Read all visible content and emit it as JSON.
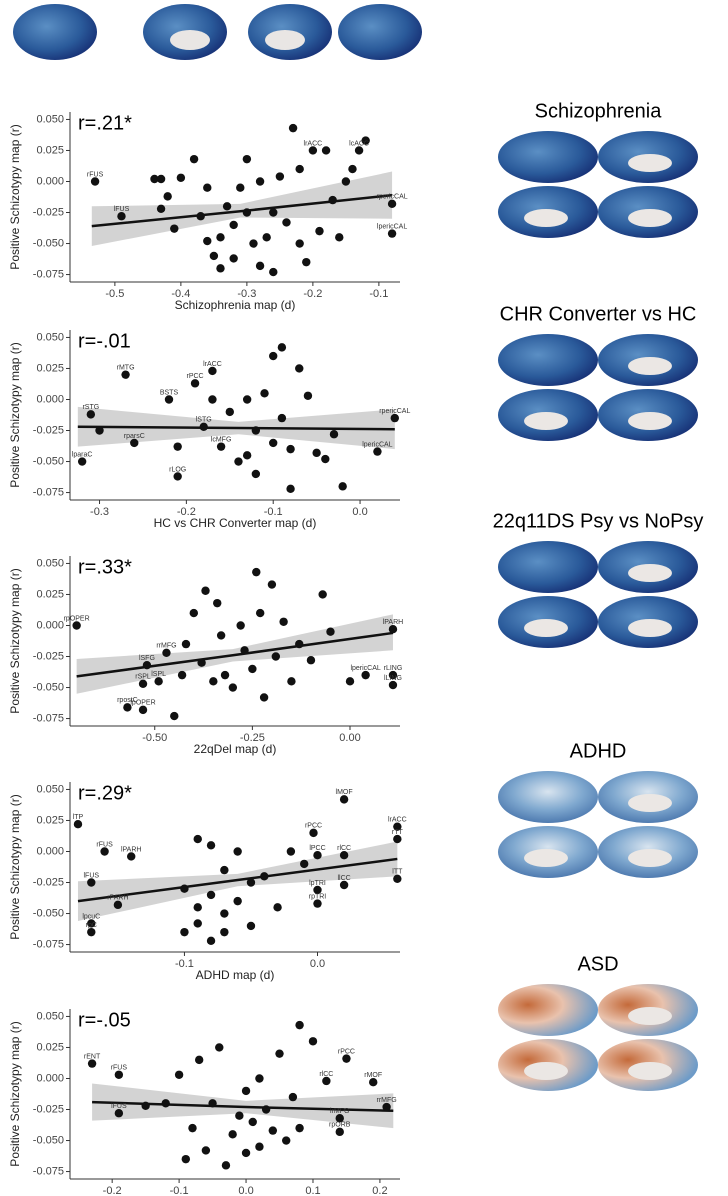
{
  "chart_data": [
    {
      "type": "scatter",
      "stat_label": "r=.21*",
      "brain_map_title": "Schizophrenia",
      "x_label": "Schizophrenia map (d)",
      "y_label": "Positive Schizotypy map (r)",
      "color": "#111111",
      "xlim": [
        -0.568,
        -0.068
      ],
      "ylim": [
        -0.081,
        0.056
      ],
      "xticks": [
        -0.5,
        -0.4,
        -0.3,
        -0.2,
        -0.1
      ],
      "yticks": [
        {
          "value": 0.05,
          "label": "0.050"
        },
        0.025,
        {
          "value": 0,
          "label": "0.000"
        },
        -0.025,
        {
          "value": -0.05,
          "label": "-0.050"
        },
        -0.075
      ],
      "x": [
        -0.53,
        -0.49,
        -0.44,
        -0.43,
        -0.42,
        -0.43,
        -0.41,
        -0.4,
        -0.38,
        -0.37,
        -0.36,
        -0.36,
        -0.35,
        -0.34,
        -0.34,
        -0.33,
        -0.32,
        -0.32,
        -0.31,
        -0.3,
        -0.3,
        -0.29,
        -0.28,
        -0.28,
        -0.27,
        -0.26,
        -0.26,
        -0.25,
        -0.24,
        -0.23,
        -0.22,
        -0.22,
        -0.21,
        -0.2,
        -0.19,
        -0.18,
        -0.17,
        -0.16,
        -0.15,
        -0.14,
        -0.13,
        -0.12,
        -0.08,
        -0.08
      ],
      "values": [
        0.0,
        -0.028,
        0.002,
        0.002,
        -0.012,
        -0.022,
        -0.038,
        0.003,
        0.018,
        -0.028,
        -0.005,
        -0.048,
        -0.06,
        -0.045,
        -0.07,
        -0.02,
        -0.035,
        -0.062,
        -0.005,
        0.018,
        -0.025,
        -0.05,
        -0.068,
        0.0,
        -0.045,
        -0.073,
        -0.025,
        0.004,
        -0.033,
        0.043,
        0.01,
        -0.05,
        -0.065,
        0.025,
        -0.04,
        0.025,
        -0.015,
        -0.045,
        0.0,
        0.01,
        0.025,
        0.033,
        -0.018,
        -0.042
      ],
      "annotations": [
        {
          "text": "rFUS",
          "x": -0.53,
          "y": 0.0
        },
        {
          "text": "lFUS",
          "x": -0.49,
          "y": -0.028
        },
        {
          "text": "lrACC",
          "x": -0.2,
          "y": 0.025
        },
        {
          "text": "lcACC",
          "x": -0.13,
          "y": 0.025
        },
        {
          "text": "rpericCAL",
          "x": -0.08,
          "y": -0.018
        },
        {
          "text": "lpericCAL",
          "x": -0.08,
          "y": -0.042
        }
      ],
      "fit": {
        "x": [
          -0.535,
          -0.31,
          -0.08
        ],
        "y": [
          -0.036,
          -0.024,
          -0.011
        ],
        "lower": [
          -0.052,
          -0.029,
          -0.03
        ],
        "upper": [
          -0.02,
          -0.018,
          0.008
        ]
      }
    },
    {
      "type": "scatter",
      "stat_label": "r=-.01",
      "brain_map_title": "CHR Converter vs HC",
      "x_label": "HC vs CHR Converter map (d)",
      "y_label": "Positive Schizotypy map (r)",
      "color": "#111111",
      "xlim": [
        -0.334,
        0.046
      ],
      "ylim": [
        -0.081,
        0.056
      ],
      "xticks": [
        -0.3,
        -0.2,
        -0.1,
        {
          "value": 0,
          "label": "0.0"
        }
      ],
      "yticks": [
        {
          "value": 0.05,
          "label": "0.050"
        },
        0.025,
        {
          "value": 0,
          "label": "0.000"
        },
        -0.025,
        {
          "value": -0.05,
          "label": "-0.050"
        },
        -0.075
      ],
      "x": [
        -0.32,
        -0.31,
        -0.3,
        -0.27,
        -0.26,
        -0.22,
        -0.21,
        -0.21,
        -0.19,
        -0.18,
        -0.17,
        -0.17,
        -0.16,
        -0.15,
        -0.14,
        -0.13,
        -0.13,
        -0.12,
        -0.12,
        -0.11,
        -0.1,
        -0.1,
        -0.09,
        -0.09,
        -0.08,
        -0.08,
        -0.07,
        -0.06,
        -0.05,
        -0.04,
        -0.03,
        -0.02,
        0.02,
        0.04
      ],
      "values": [
        -0.05,
        -0.012,
        -0.025,
        0.02,
        -0.035,
        0.0,
        -0.038,
        -0.062,
        0.013,
        -0.022,
        0.023,
        0.0,
        -0.038,
        -0.01,
        -0.05,
        0.0,
        -0.045,
        -0.025,
        -0.06,
        0.005,
        0.035,
        -0.035,
        0.042,
        -0.015,
        -0.072,
        -0.04,
        0.025,
        0.003,
        -0.043,
        -0.048,
        -0.028,
        -0.07,
        -0.042,
        -0.015
      ],
      "annotations": [
        {
          "text": "lparaC",
          "x": -0.32,
          "y": -0.05
        },
        {
          "text": "rSTG",
          "x": -0.31,
          "y": -0.012
        },
        {
          "text": "rMTG",
          "x": -0.27,
          "y": 0.02
        },
        {
          "text": "rparsC",
          "x": -0.26,
          "y": -0.035
        },
        {
          "text": "BSTS",
          "x": -0.22,
          "y": 0.0
        },
        {
          "text": "rLOG",
          "x": -0.21,
          "y": -0.062
        },
        {
          "text": "rPCC",
          "x": -0.19,
          "y": 0.013
        },
        {
          "text": "lSTG",
          "x": -0.18,
          "y": -0.022
        },
        {
          "text": "lrACC",
          "x": -0.17,
          "y": 0.023
        },
        {
          "text": "lcMFG",
          "x": -0.16,
          "y": -0.038
        },
        {
          "text": "lpericCAL",
          "x": 0.02,
          "y": -0.042
        },
        {
          "text": "rpericCAL",
          "x": 0.04,
          "y": -0.015
        }
      ],
      "fit": {
        "x": [
          -0.325,
          -0.14,
          0.04
        ],
        "y": [
          -0.022,
          -0.023,
          -0.024
        ],
        "lower": [
          -0.038,
          -0.028,
          -0.04
        ],
        "upper": [
          -0.006,
          -0.018,
          -0.008
        ]
      }
    },
    {
      "type": "scatter",
      "stat_label": "r=.33*",
      "brain_map_title": "22q11DS Psy vs NoPsy",
      "x_label": "22qDel map (d)",
      "y_label": "Positive Schizotypy map (r)",
      "color": "#111111",
      "xlim": [
        -0.717,
        0.128
      ],
      "ylim": [
        -0.081,
        0.056
      ],
      "xticks": [
        {
          "value": -0.5,
          "label": "-0.50"
        },
        -0.25,
        {
          "value": 0,
          "label": "0.00"
        }
      ],
      "yticks": [
        {
          "value": 0.05,
          "label": "0.050"
        },
        0.025,
        {
          "value": 0,
          "label": "0.000"
        },
        -0.025,
        {
          "value": -0.05,
          "label": "-0.050"
        },
        -0.075
      ],
      "x": [
        -0.7,
        -0.57,
        -0.53,
        -0.53,
        -0.52,
        -0.49,
        -0.47,
        -0.45,
        -0.43,
        -0.42,
        -0.4,
        -0.38,
        -0.37,
        -0.35,
        -0.34,
        -0.33,
        -0.32,
        -0.3,
        -0.28,
        -0.27,
        -0.25,
        -0.24,
        -0.23,
        -0.22,
        -0.2,
        -0.19,
        -0.17,
        -0.15,
        -0.13,
        -0.1,
        -0.07,
        -0.05,
        0.0,
        0.04,
        0.11,
        0.11,
        0.11
      ],
      "values": [
        0.0,
        -0.066,
        -0.047,
        -0.068,
        -0.032,
        -0.045,
        -0.022,
        -0.073,
        -0.04,
        -0.015,
        0.01,
        -0.03,
        0.028,
        -0.045,
        0.018,
        -0.008,
        -0.04,
        -0.05,
        0.0,
        -0.02,
        -0.035,
        0.043,
        0.01,
        -0.058,
        0.033,
        -0.025,
        0.003,
        -0.045,
        -0.015,
        -0.028,
        0.025,
        -0.005,
        -0.045,
        -0.04,
        -0.003,
        -0.04,
        -0.048
      ],
      "annotations": [
        {
          "text": "rpOPER",
          "x": -0.7,
          "y": 0.0
        },
        {
          "text": "rpostC",
          "x": -0.57,
          "y": -0.066
        },
        {
          "text": "rSPL",
          "x": -0.53,
          "y": -0.047
        },
        {
          "text": "lpOPER",
          "x": -0.53,
          "y": -0.068
        },
        {
          "text": "lSFG",
          "x": -0.52,
          "y": -0.032
        },
        {
          "text": "lSPL",
          "x": -0.49,
          "y": -0.045
        },
        {
          "text": "rrMFG",
          "x": -0.47,
          "y": -0.022
        },
        {
          "text": "lpericCAL",
          "x": 0.04,
          "y": -0.04
        },
        {
          "text": "lPARH",
          "x": 0.11,
          "y": -0.003
        },
        {
          "text": "rLING",
          "x": 0.11,
          "y": -0.04
        },
        {
          "text": "lLING",
          "x": 0.11,
          "y": -0.048
        }
      ],
      "fit": {
        "x": [
          -0.7,
          -0.3,
          0.11
        ],
        "y": [
          -0.041,
          -0.024,
          -0.006
        ],
        "lower": [
          -0.055,
          -0.029,
          -0.02
        ],
        "upper": [
          -0.027,
          -0.019,
          0.009
        ]
      }
    },
    {
      "type": "scatter",
      "stat_label": "r=.29*",
      "brain_map_title": "ADHD",
      "x_label": "ADHD map (d)",
      "y_label": "Positive Schizotypy map (r)",
      "color": "#111111",
      "xlim": [
        -0.186,
        0.062
      ],
      "ylim": [
        -0.081,
        0.056
      ],
      "xticks": [
        -0.1,
        {
          "value": 0,
          "label": "0.0"
        }
      ],
      "yticks": [
        {
          "value": 0.05,
          "label": "0.050"
        },
        0.025,
        {
          "value": 0,
          "label": "0.000"
        },
        -0.025,
        {
          "value": -0.05,
          "label": "-0.050"
        },
        -0.075
      ],
      "x": [
        -0.18,
        -0.17,
        -0.17,
        -0.17,
        -0.16,
        -0.15,
        -0.14,
        -0.1,
        -0.1,
        -0.09,
        -0.09,
        -0.09,
        -0.08,
        -0.08,
        -0.08,
        -0.07,
        -0.07,
        -0.07,
        -0.06,
        -0.06,
        -0.05,
        -0.05,
        -0.04,
        -0.03,
        -0.02,
        -0.01,
        -0.003,
        0.0,
        0.0,
        0.0,
        0.02,
        0.02,
        0.02,
        0.06,
        0.06,
        0.06
      ],
      "values": [
        0.022,
        -0.025,
        -0.058,
        -0.065,
        0.0,
        -0.043,
        -0.004,
        -0.065,
        -0.03,
        0.01,
        -0.045,
        -0.058,
        0.005,
        -0.035,
        -0.072,
        -0.015,
        -0.05,
        -0.065,
        0.0,
        -0.04,
        -0.025,
        -0.06,
        -0.02,
        -0.045,
        0.0,
        -0.01,
        0.015,
        -0.003,
        -0.031,
        -0.042,
        0.042,
        -0.003,
        -0.027,
        0.02,
        0.01,
        -0.022
      ],
      "annotations": [
        {
          "text": "lTP",
          "x": -0.18,
          "y": 0.022
        },
        {
          "text": "lFUS",
          "x": -0.17,
          "y": -0.025
        },
        {
          "text": "lpcuC",
          "x": -0.17,
          "y": -0.058
        },
        {
          "text": "rpC",
          "x": -0.17,
          "y": -0.065
        },
        {
          "text": "rFUS",
          "x": -0.16,
          "y": 0.0
        },
        {
          "text": "rPARH",
          "x": -0.15,
          "y": -0.043
        },
        {
          "text": "lPARH",
          "x": -0.14,
          "y": -0.004
        },
        {
          "text": "rPCC",
          "x": -0.003,
          "y": 0.015
        },
        {
          "text": "lPCC",
          "x": 0.0,
          "y": -0.003
        },
        {
          "text": "lpTRI",
          "x": 0.0,
          "y": -0.031
        },
        {
          "text": "rpTRI",
          "x": 0.0,
          "y": -0.042
        },
        {
          "text": "lMOF",
          "x": 0.02,
          "y": 0.042
        },
        {
          "text": "rlCC",
          "x": 0.02,
          "y": -0.003
        },
        {
          "text": "llCC",
          "x": 0.02,
          "y": -0.027
        },
        {
          "text": "lrACC",
          "x": 0.06,
          "y": 0.02
        },
        {
          "text": "rTT",
          "x": 0.06,
          "y": 0.01
        },
        {
          "text": "lTT",
          "x": 0.06,
          "y": -0.022
        }
      ],
      "fit": {
        "x": [
          -0.18,
          -0.06,
          0.06
        ],
        "y": [
          -0.04,
          -0.023,
          -0.006
        ],
        "lower": [
          -0.056,
          -0.028,
          -0.02
        ],
        "upper": [
          -0.024,
          -0.018,
          0.008
        ]
      }
    },
    {
      "type": "scatter",
      "stat_label": "r=-.05",
      "brain_map_title": "ASD",
      "x_label": "ASD map (d)",
      "y_label": "Positive Schizotypy map (r)",
      "color": "#111111",
      "xlim": [
        -0.263,
        0.23
      ],
      "ylim": [
        -0.081,
        0.056
      ],
      "xticks": [
        -0.2,
        -0.1,
        {
          "value": 0,
          "label": "0.0"
        },
        0.1,
        0.2
      ],
      "yticks": [
        {
          "value": 0.05,
          "label": "0.050"
        },
        0.025,
        {
          "value": 0,
          "label": "0.000"
        },
        -0.025,
        {
          "value": -0.05,
          "label": "-0.050"
        },
        -0.075
      ],
      "x": [
        -0.23,
        -0.19,
        -0.19,
        -0.15,
        -0.12,
        -0.1,
        -0.09,
        -0.08,
        -0.07,
        -0.06,
        -0.05,
        -0.04,
        -0.03,
        -0.02,
        -0.01,
        0.0,
        0.0,
        0.01,
        0.02,
        0.02,
        0.03,
        0.04,
        0.05,
        0.06,
        0.07,
        0.08,
        0.08,
        0.1,
        0.12,
        0.14,
        0.14,
        0.15,
        0.19,
        0.21
      ],
      "values": [
        0.012,
        0.003,
        -0.028,
        -0.022,
        -0.02,
        0.003,
        -0.065,
        -0.04,
        0.015,
        -0.058,
        -0.02,
        0.025,
        -0.07,
        -0.045,
        -0.03,
        -0.06,
        -0.01,
        -0.035,
        0.0,
        -0.055,
        -0.025,
        -0.042,
        0.02,
        -0.05,
        -0.015,
        0.043,
        -0.04,
        0.03,
        -0.002,
        -0.032,
        -0.043,
        0.016,
        -0.003,
        -0.023
      ],
      "annotations": [
        {
          "text": "rENT",
          "x": -0.23,
          "y": 0.012
        },
        {
          "text": "rFUS",
          "x": -0.19,
          "y": 0.003
        },
        {
          "text": "lFUS",
          "x": -0.19,
          "y": -0.028
        },
        {
          "text": "rlCC",
          "x": 0.12,
          "y": -0.002
        },
        {
          "text": "lrMFG",
          "x": 0.14,
          "y": -0.032
        },
        {
          "text": "rpORB",
          "x": 0.14,
          "y": -0.043
        },
        {
          "text": "rPCC",
          "x": 0.15,
          "y": 0.016
        },
        {
          "text": "rMOF",
          "x": 0.19,
          "y": -0.003
        },
        {
          "text": "rrMFG",
          "x": 0.21,
          "y": -0.023
        }
      ],
      "fit": {
        "x": [
          -0.23,
          0.0,
          0.22
        ],
        "y": [
          -0.019,
          -0.023,
          -0.026
        ],
        "lower": [
          -0.034,
          -0.028,
          -0.04
        ],
        "upper": [
          -0.004,
          -0.018,
          -0.012
        ]
      }
    }
  ]
}
